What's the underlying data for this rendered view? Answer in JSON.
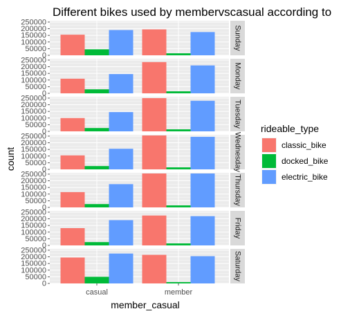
{
  "chart_data": {
    "type": "bar",
    "title": "Different bikes used by membervscasual according to",
    "xlabel": "member_casual",
    "ylabel": "count",
    "categories": [
      "casual",
      "member"
    ],
    "ylim": [
      0,
      260000
    ],
    "yticks": [
      0,
      50000,
      100000,
      150000,
      200000,
      250000
    ],
    "ytick_labels": [
      "0",
      "50000",
      "100000",
      "150000",
      "200000",
      "250000"
    ],
    "legend_title": "rideable_type",
    "legend_position": "right",
    "grid": true,
    "series": [
      {
        "name": "classic_bike",
        "color": "#F8766D"
      },
      {
        "name": "docked_bike",
        "color": "#00BA38"
      },
      {
        "name": "electric_bike",
        "color": "#619CFF"
      }
    ],
    "facets": [
      {
        "label": "Sunday",
        "values": {
          "casual": [
            155000,
            45000,
            190000
          ],
          "member": [
            195000,
            15000,
            175000
          ]
        }
      },
      {
        "label": "Monday",
        "values": {
          "casual": [
            110000,
            30000,
            145000
          ],
          "member": [
            235000,
            15000,
            210000
          ]
        }
      },
      {
        "label": "Tuesday",
        "values": {
          "casual": [
            100000,
            25000,
            145000
          ],
          "member": [
            250000,
            15000,
            230000
          ]
        }
      },
      {
        "label": "Wednesday",
        "values": {
          "casual": [
            105000,
            25000,
            155000
          ],
          "member": [
            255000,
            15000,
            245000
          ]
        }
      },
      {
        "label": "Thursday",
        "values": {
          "casual": [
            115000,
            25000,
            175000
          ],
          "member": [
            255000,
            15000,
            255000
          ]
        }
      },
      {
        "label": "Friday",
        "values": {
          "casual": [
            130000,
            25000,
            190000
          ],
          "member": [
            225000,
            15000,
            220000
          ]
        }
      },
      {
        "label": "Saturday",
        "values": {
          "casual": [
            195000,
            50000,
            225000
          ],
          "member": [
            215000,
            10000,
            205000
          ]
        }
      }
    ]
  }
}
